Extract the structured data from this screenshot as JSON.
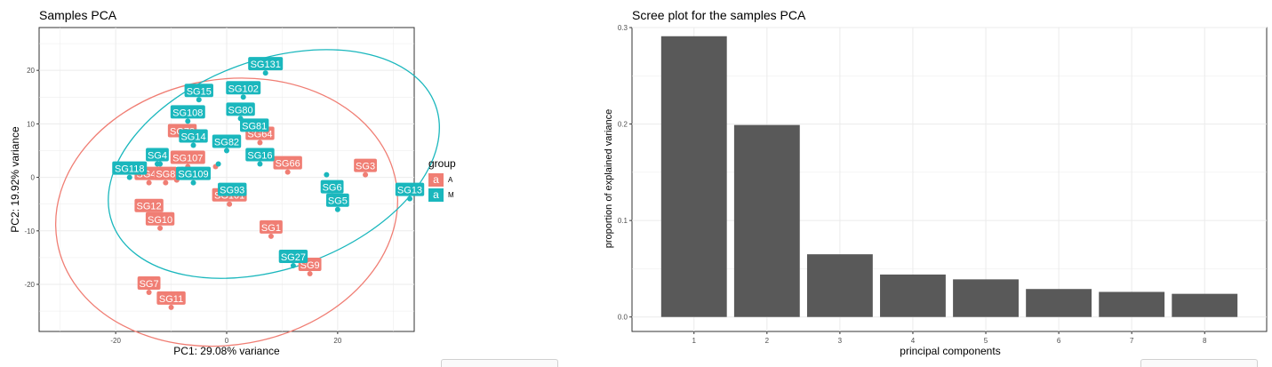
{
  "colors": {
    "A": "#f07e74",
    "M": "#1ab7bd",
    "bar": "#595959",
    "grid": "#ebebeb"
  },
  "pca": {
    "title": "Samples PCA",
    "xlabel": "PC1: 29.08% variance",
    "ylabel": "PC2: 19.92% variance",
    "legend": {
      "title": "group",
      "key_glyph": "a",
      "items": [
        "A",
        "M"
      ]
    }
  },
  "scree": {
    "title": "Scree plot for the samples PCA",
    "xlabel": "principal components",
    "ylabel": "proportion of explained variance"
  },
  "chart_data": [
    {
      "type": "scatter",
      "title": "Samples PCA",
      "xlabel": "PC1: 29.08% variance",
      "ylabel": "PC2: 19.92% variance",
      "xlim": [
        -33.8,
        33.8
      ],
      "ylim": [
        -28.8,
        28
      ],
      "xticks": [
        -20,
        0,
        20
      ],
      "yticks": [
        -20,
        -10,
        0,
        10,
        20
      ],
      "grid": true,
      "legend_position": "right",
      "series": [
        {
          "name": "A",
          "color": "#f07e74",
          "points": [
            {
              "label": "SG78",
              "x": -8,
              "y": 7
            },
            {
              "label": "SG64",
              "x": 6,
              "y": 6.5
            },
            {
              "label": "SG107",
              "x": -7,
              "y": 2
            },
            {
              "label": "SG3",
              "x": 25,
              "y": 0.5
            },
            {
              "label": "SG66",
              "x": 11,
              "y": 1
            },
            {
              "label": "SG46",
              "x": -14,
              "y": -1
            },
            {
              "label": "SG8",
              "x": -11,
              "y": -1
            },
            {
              "label": "SG101",
              "x": 0.5,
              "y": -5
            },
            {
              "label": "SG12",
              "x": -14,
              "y": -7
            },
            {
              "label": "SG10",
              "x": -12,
              "y": -9.5
            },
            {
              "label": "SG1",
              "x": 8,
              "y": -11
            },
            {
              "label": "SG9",
              "x": 15,
              "y": -18
            },
            {
              "label": "SG7",
              "x": -14,
              "y": -21.5
            },
            {
              "label": "SG11",
              "x": -10,
              "y": -24.3
            },
            {
              "label": "",
              "x": -9,
              "y": -0.5
            },
            {
              "label": "",
              "x": -10,
              "y": 0
            },
            {
              "label": "",
              "x": -8,
              "y": 1.5
            },
            {
              "label": "",
              "x": -2,
              "y": 2
            }
          ]
        },
        {
          "name": "M",
          "color": "#1ab7bd",
          "points": [
            {
              "label": "SG131",
              "x": 7,
              "y": 19.5
            },
            {
              "label": "SG15",
              "x": -5,
              "y": 14.5
            },
            {
              "label": "SG102",
              "x": 3,
              "y": 15
            },
            {
              "label": "SG108",
              "x": -7,
              "y": 10.5
            },
            {
              "label": "SG80",
              "x": 2.5,
              "y": 11
            },
            {
              "label": "SG81",
              "x": 5,
              "y": 8
            },
            {
              "label": "SG14",
              "x": -6,
              "y": 6
            },
            {
              "label": "SG82",
              "x": 0,
              "y": 5
            },
            {
              "label": "SG4",
              "x": -12.5,
              "y": 2.5
            },
            {
              "label": "SG16",
              "x": 6,
              "y": 2.5
            },
            {
              "label": "SG118",
              "x": -17.5,
              "y": 0
            },
            {
              "label": "SG109",
              "x": -6,
              "y": -1
            },
            {
              "label": "SG93",
              "x": 1,
              "y": -4
            },
            {
              "label": "SG6",
              "x": 19,
              "y": -3.5
            },
            {
              "label": "SG5",
              "x": 20,
              "y": -6
            },
            {
              "label": "SG13",
              "x": 33,
              "y": -4
            },
            {
              "label": "SG27",
              "x": 12,
              "y": -16.5
            },
            {
              "label": "",
              "x": 18,
              "y": 0.5
            },
            {
              "label": "",
              "x": -1.5,
              "y": 2.5
            },
            {
              "label": "",
              "x": -12,
              "y": 2.5
            }
          ]
        }
      ],
      "ellipses": [
        {
          "group": "A",
          "cx": 0,
          "cy": -6.5,
          "rx": 31,
          "ry": 24.8,
          "rotation_deg": 10
        },
        {
          "group": "M",
          "cx": 8.5,
          "cy": 2.5,
          "rx": 31,
          "ry": 19.5,
          "rotation_deg": 20
        }
      ]
    },
    {
      "type": "bar",
      "title": "Scree plot for the samples PCA",
      "xlabel": "principal components",
      "ylabel": "proportion of explained variance",
      "categories": [
        "1",
        "2",
        "3",
        "4",
        "5",
        "6",
        "7",
        "8"
      ],
      "values": [
        0.291,
        0.199,
        0.065,
        0.044,
        0.039,
        0.029,
        0.026,
        0.024
      ],
      "ylim": [
        -0.015,
        0.3
      ],
      "yticks": [
        0.0,
        0.1,
        0.2,
        0.3
      ],
      "ytick_labels": [
        "0.0",
        "0.1",
        "0.2",
        "0.3"
      ],
      "grid": true
    }
  ]
}
